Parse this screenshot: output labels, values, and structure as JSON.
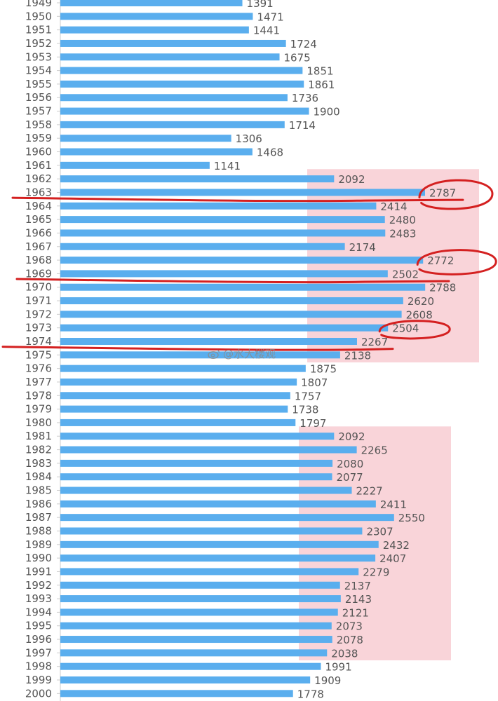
{
  "chart_data": {
    "type": "bar",
    "orientation": "horizontal",
    "categories": [
      "1949",
      "1950",
      "1951",
      "1952",
      "1953",
      "1954",
      "1955",
      "1956",
      "1957",
      "1958",
      "1959",
      "1960",
      "1961",
      "1962",
      "1963",
      "1964",
      "1965",
      "1966",
      "1967",
      "1968",
      "1969",
      "1970",
      "1971",
      "1972",
      "1973",
      "1974",
      "1975",
      "1976",
      "1977",
      "1978",
      "1979",
      "1980",
      "1981",
      "1982",
      "1983",
      "1984",
      "1985",
      "1986",
      "1987",
      "1988",
      "1989",
      "1990",
      "1991",
      "1992",
      "1993",
      "1994",
      "1995",
      "1996",
      "1997",
      "1998",
      "1999",
      "2000"
    ],
    "values": [
      1391,
      1471,
      1441,
      1724,
      1675,
      1851,
      1861,
      1736,
      1900,
      1714,
      1306,
      1468,
      1141,
      2092,
      2787,
      2414,
      2480,
      2483,
      2174,
      2772,
      2502,
      2788,
      2620,
      2608,
      2504,
      2267,
      2138,
      1875,
      1807,
      1757,
      1738,
      1797,
      2092,
      2265,
      2080,
      2077,
      2227,
      2411,
      2550,
      2307,
      2432,
      2407,
      2279,
      2137,
      2143,
      2121,
      2073,
      2078,
      2038,
      1991,
      1909,
      1778
    ],
    "title": "",
    "xlabel": "",
    "ylabel": "",
    "bar_color": "#5aaeee",
    "highlight_color": "#f8cdd2",
    "annotation_color": "#d42020",
    "label_color": "#555555",
    "highlight_ranges": [
      [
        "1962",
        "1975"
      ],
      [
        "1981",
        "1997"
      ]
    ],
    "circled": [
      "1963",
      "1968",
      "1973"
    ],
    "underlined": [
      "1963",
      "1969",
      "1974"
    ],
    "grid": false
  },
  "watermark": {
    "icon": "weibo-icon",
    "text": "@水大楼观"
  }
}
